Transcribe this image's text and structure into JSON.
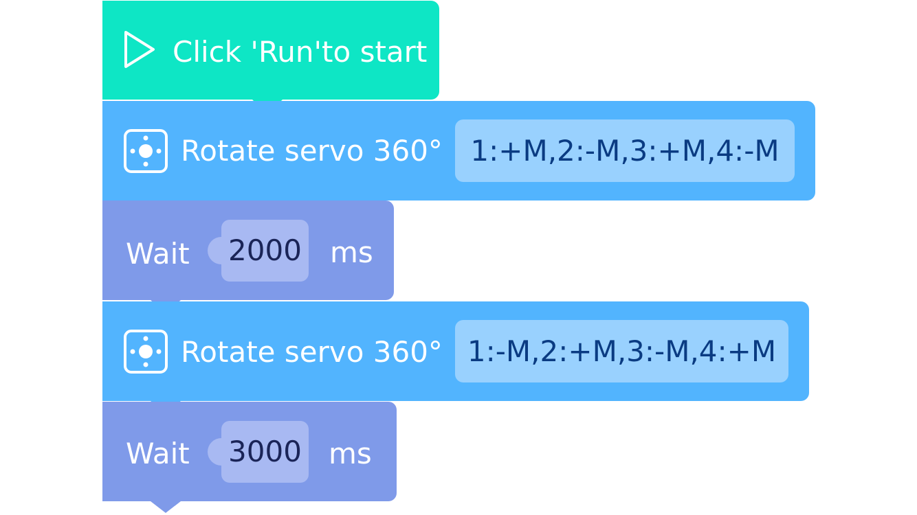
{
  "start_block": {
    "label": "Click 'Run'to start",
    "icon": "play-icon",
    "color": "#0ee6c5"
  },
  "program": [
    {
      "type": "servo",
      "label": "Rotate servo 360°",
      "icon": "servo-icon",
      "value": "1:+M,2:-M,3:+M,4:-M",
      "color": "#52b4fe"
    },
    {
      "type": "wait",
      "label": "Wait",
      "value": "2000",
      "unit": "ms",
      "color": "#7f9ae9"
    },
    {
      "type": "servo",
      "label": "Rotate servo 360°",
      "icon": "servo-icon",
      "value": "1:-M,2:+M,3:-M,4:+M",
      "color": "#52b4fe"
    },
    {
      "type": "wait",
      "label": "Wait",
      "value": "3000",
      "unit": "ms",
      "color": "#7f9ae9"
    }
  ]
}
